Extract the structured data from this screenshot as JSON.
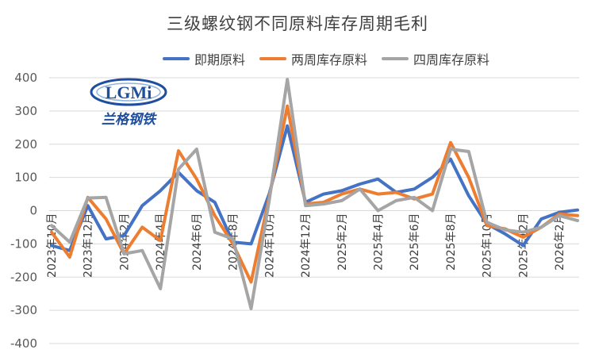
{
  "chart_data": {
    "type": "line",
    "title": "三级螺纹钢不同原料库存周期毛利",
    "xlabel": "",
    "ylabel": "",
    "ylim": [
      -400,
      400
    ],
    "y_ticks": [
      400,
      300,
      200,
      100,
      0,
      -100,
      -200,
      -300,
      -400
    ],
    "x_tick_labels": [
      "2023年10月",
      "2023年12月",
      "2024年2月",
      "2024年4月",
      "2024年6月",
      "2024年8月",
      "2024年10月",
      "2024年12月",
      "2025年2月",
      "2025年4月",
      "2025年6月",
      "2025年8月",
      "2025年10月",
      "2025年12月",
      "2026年2月"
    ],
    "grid": "horizontal",
    "legend_position": "top",
    "series": [
      {
        "name": "即期原料",
        "color": "#4472C4",
        "values": [
          -105,
          -120,
          15,
          -85,
          -75,
          15,
          60,
          115,
          60,
          25,
          -95,
          -100,
          50,
          255,
          25,
          50,
          60,
          80,
          95,
          55,
          65,
          100,
          155,
          45,
          -40,
          -70,
          -105,
          -25,
          -5,
          2
        ]
      },
      {
        "name": "两周库存原料",
        "color": "#ED7D31",
        "values": [
          -65,
          -140,
          40,
          -25,
          -130,
          -50,
          -90,
          180,
          95,
          -15,
          -100,
          -215,
          40,
          315,
          20,
          25,
          50,
          65,
          50,
          55,
          35,
          50,
          205,
          100,
          -45,
          -55,
          -80,
          -50,
          -10,
          -15
        ]
      },
      {
        "name": "四周库存原料",
        "color": "#A5A5A5",
        "values": [
          -45,
          -95,
          38,
          40,
          -130,
          -120,
          -235,
          125,
          185,
          -65,
          -85,
          -295,
          30,
          395,
          15,
          20,
          30,
          65,
          0,
          30,
          40,
          0,
          185,
          178,
          -35,
          -58,
          -65,
          -50,
          -15,
          -30
        ]
      }
    ]
  },
  "logo": {
    "text": "LGMi",
    "subtitle": "兰格钢铁",
    "color": "#1F4E9E"
  }
}
